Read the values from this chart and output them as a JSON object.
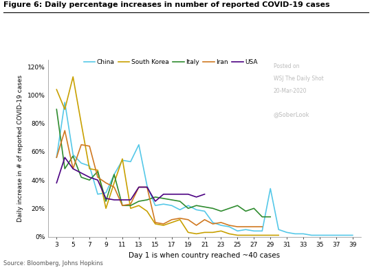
{
  "title": "Figure 6: Daily percentage increases in number of reported COVID-19 cases",
  "xlabel": "Day 1 is when country reached ~40 cases",
  "ylabel": "Daily increase in # of reported COVID-19 cases",
  "source": "Source: Bloomberg, Johns Hopkins",
  "watermark_line1": "Posted on",
  "watermark_line2": "WSJ The Daily Shot",
  "watermark_line3": "20-Mar-2020",
  "watermark_line4": "@SoberLook",
  "xlim": [
    2,
    40
  ],
  "ylim": [
    0,
    1.25
  ],
  "xticks": [
    3,
    5,
    7,
    9,
    11,
    13,
    15,
    17,
    19,
    21,
    23,
    25,
    27,
    29,
    31,
    33,
    35,
    37,
    39
  ],
  "yticks": [
    0,
    0.2,
    0.4,
    0.6,
    0.8,
    1.0,
    1.2
  ],
  "ytick_labels": [
    "0%",
    "20%",
    "40%",
    "60%",
    "80%",
    "100%",
    "120%"
  ],
  "countries": {
    "China": {
      "color": "#55C8E8",
      "x": [
        3,
        4,
        5,
        6,
        7,
        8,
        9,
        10,
        11,
        12,
        13,
        14,
        15,
        16,
        17,
        18,
        19,
        20,
        21,
        22,
        23,
        24,
        25,
        26,
        27,
        28,
        29,
        30,
        31,
        32,
        33,
        34,
        35,
        36,
        37,
        38,
        39
      ],
      "y": [
        0.56,
        0.95,
        0.58,
        0.52,
        0.5,
        0.3,
        0.31,
        0.44,
        0.54,
        0.53,
        0.65,
        0.36,
        0.22,
        0.23,
        0.22,
        0.19,
        0.22,
        0.19,
        0.18,
        0.1,
        0.08,
        0.07,
        0.04,
        0.05,
        0.04,
        0.04,
        0.34,
        0.05,
        0.03,
        0.02,
        0.02,
        0.01,
        0.01,
        0.01,
        0.01,
        0.01,
        0.01
      ]
    },
    "South Korea": {
      "color": "#C8A000",
      "x": [
        3,
        4,
        5,
        6,
        7,
        8,
        9,
        10,
        11,
        12,
        13,
        14,
        15,
        16,
        17,
        18,
        19,
        20,
        21,
        22,
        23,
        24,
        25,
        26,
        27,
        28,
        29,
        30
      ],
      "y": [
        1.04,
        0.9,
        1.13,
        0.8,
        0.48,
        0.47,
        0.2,
        0.38,
        0.55,
        0.2,
        0.22,
        0.18,
        0.09,
        0.08,
        0.1,
        0.12,
        0.03,
        0.02,
        0.03,
        0.03,
        0.04,
        0.02,
        0.01,
        0.01,
        0.01,
        0.01,
        0.01,
        0.01
      ]
    },
    "Italy": {
      "color": "#2E8B2E",
      "x": [
        3,
        4,
        5,
        6,
        7,
        8,
        9,
        10,
        11,
        12,
        13,
        14,
        15,
        16,
        17,
        18,
        19,
        20,
        21,
        22,
        23,
        24,
        25,
        26,
        27,
        28,
        29
      ],
      "y": [
        0.9,
        0.48,
        0.57,
        0.42,
        0.4,
        0.46,
        0.25,
        0.44,
        0.22,
        0.22,
        0.25,
        0.26,
        0.28,
        0.27,
        0.26,
        0.25,
        0.2,
        0.22,
        0.21,
        0.2,
        0.18,
        0.2,
        0.22,
        0.18,
        0.2,
        0.14,
        0.14
      ]
    },
    "Iran": {
      "color": "#D07820",
      "x": [
        3,
        4,
        5,
        6,
        7,
        8,
        9,
        10,
        11,
        12,
        13,
        14,
        15,
        16,
        17,
        18,
        19,
        20,
        21,
        22,
        23,
        24,
        25,
        26,
        27,
        28
      ],
      "y": [
        0.56,
        0.75,
        0.48,
        0.65,
        0.64,
        0.42,
        0.38,
        0.35,
        0.22,
        0.23,
        0.35,
        0.35,
        0.1,
        0.09,
        0.12,
        0.13,
        0.12,
        0.08,
        0.12,
        0.09,
        0.1,
        0.08,
        0.07,
        0.07,
        0.07,
        0.07
      ]
    },
    "USA": {
      "color": "#4B0082",
      "x": [
        3,
        4,
        5,
        6,
        7,
        8,
        9,
        10,
        11,
        12,
        13,
        14,
        15,
        16,
        17,
        18,
        19,
        20,
        21
      ],
      "y": [
        0.38,
        0.56,
        0.48,
        0.45,
        0.42,
        0.4,
        0.27,
        0.26,
        0.26,
        0.26,
        0.35,
        0.35,
        0.25,
        0.3,
        0.3,
        0.3,
        0.3,
        0.28,
        0.3
      ]
    }
  }
}
